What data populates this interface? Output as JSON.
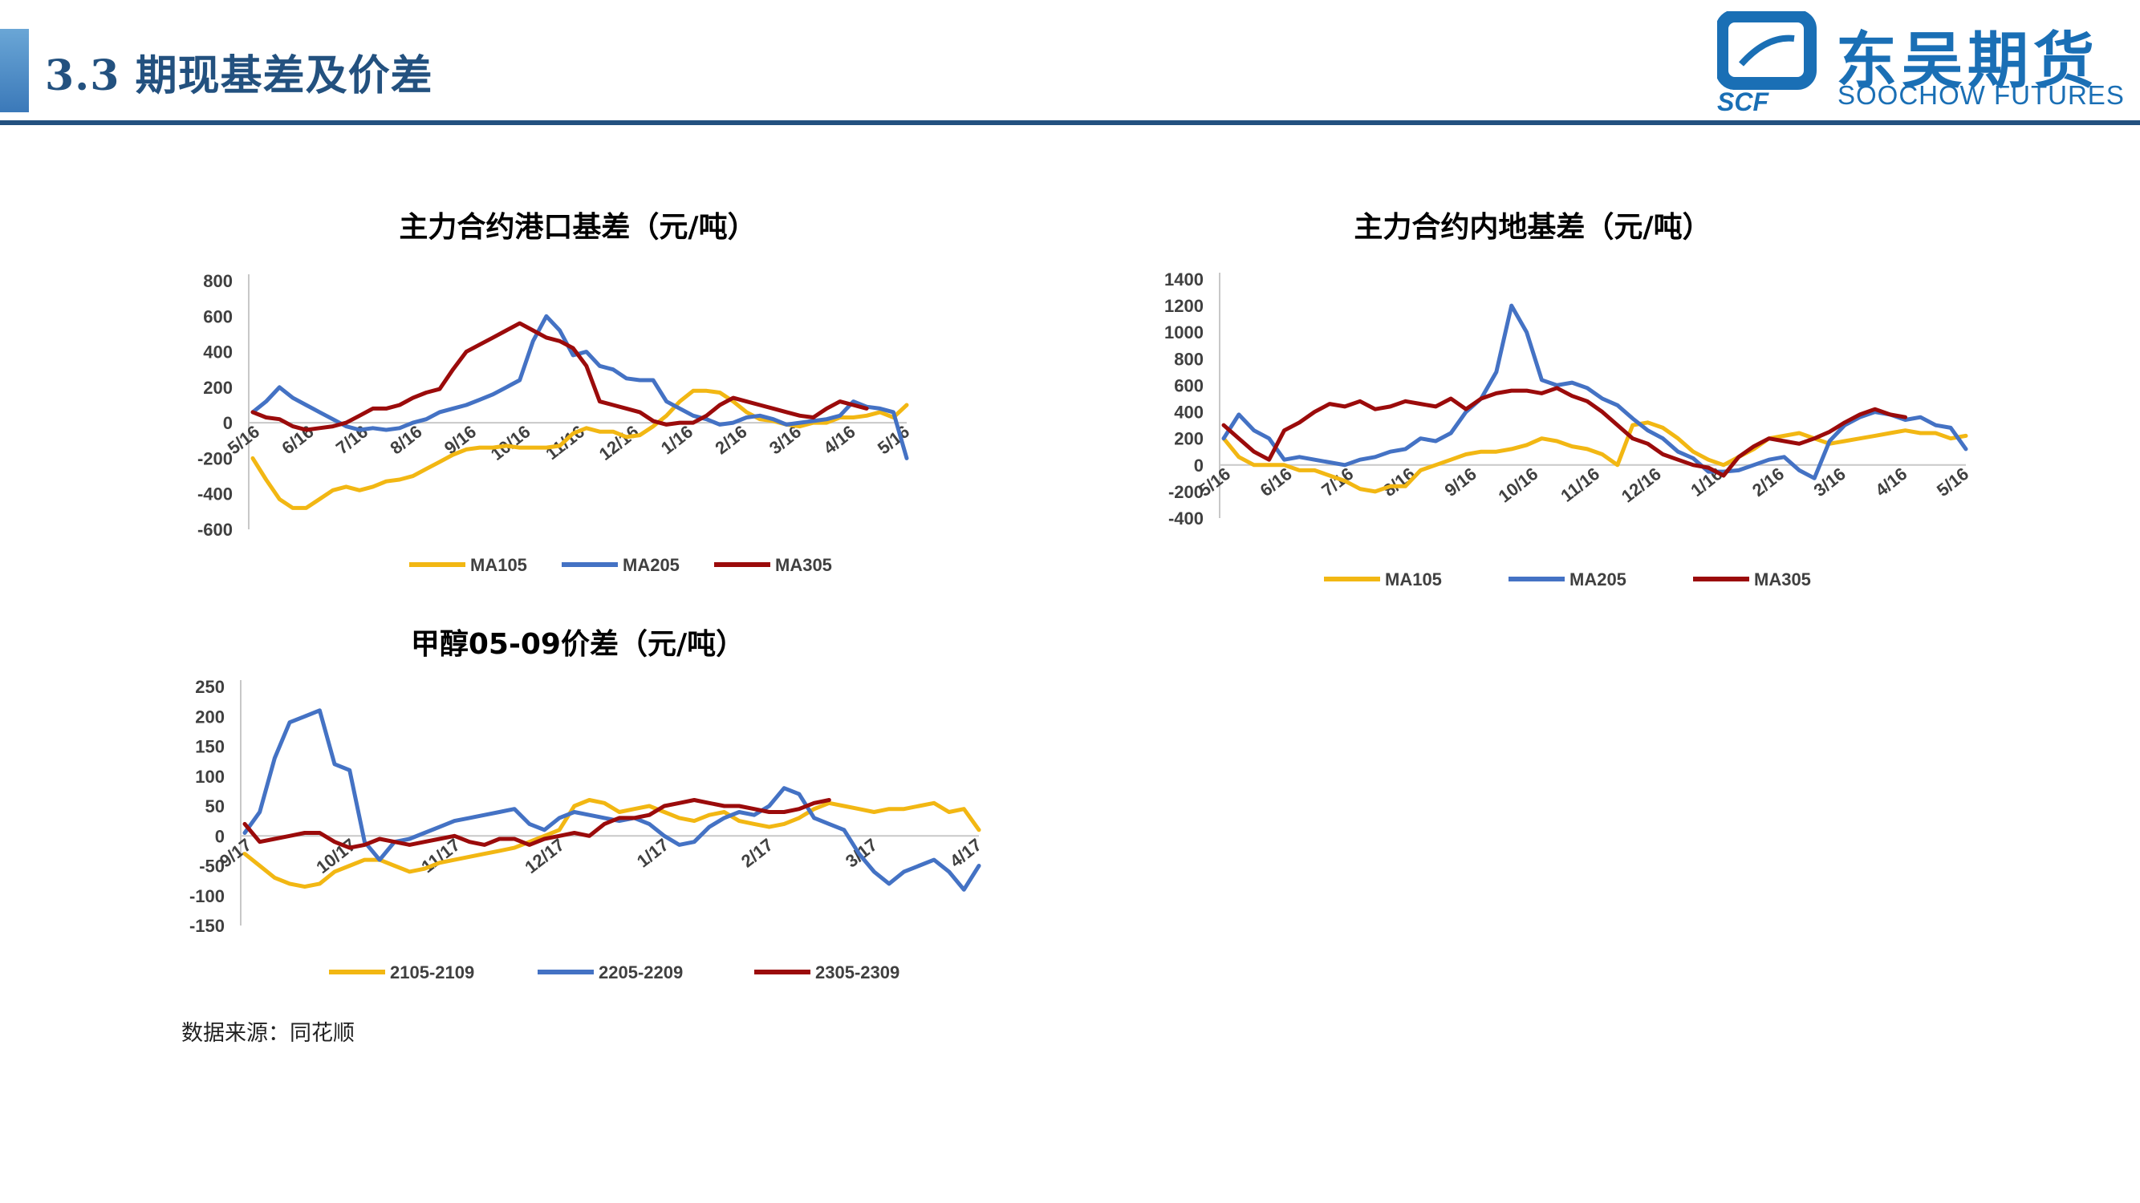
{
  "header": {
    "title": "3.3 期现基差及价差",
    "logo_cn": "东吴期货",
    "logo_en": "SOOCHOW FUTURES",
    "logo_mark": "SCF",
    "accent": "#23517f",
    "logo_color": "#1a6fb5"
  },
  "colors": {
    "yellow": "#f2b713",
    "blue": "#4472c4",
    "red": "#9b0b0b"
  },
  "chart_data": [
    {
      "type": "line",
      "title": "主力合约港口基差（元/吨）",
      "ylim": [
        -600,
        800
      ],
      "yticks": [
        800,
        600,
        400,
        200,
        0,
        -200,
        -400,
        -600
      ],
      "x_labels": [
        "5/16",
        "6/16",
        "7/16",
        "8/16",
        "9/16",
        "10/16",
        "11/16",
        "12/16",
        "1/16",
        "2/16",
        "3/16",
        "4/16",
        "5/16"
      ],
      "series": [
        {
          "name": "MA105",
          "color": "yellow",
          "values": [
            -200,
            -320,
            -430,
            -480,
            -480,
            -430,
            -380,
            -360,
            -380,
            -360,
            -330,
            -320,
            -300,
            -260,
            -220,
            -180,
            -150,
            -140,
            -140,
            -130,
            -140,
            -140,
            -140,
            -130,
            -60,
            -30,
            -50,
            -50,
            -80,
            -70,
            -20,
            40,
            120,
            180,
            180,
            170,
            120,
            60,
            20,
            10,
            -10,
            -20,
            0,
            0,
            30,
            30,
            40,
            60,
            30,
            100
          ]
        },
        {
          "name": "MA205",
          "color": "blue",
          "values": [
            60,
            120,
            200,
            140,
            100,
            60,
            20,
            -20,
            -40,
            -30,
            -40,
            -30,
            0,
            20,
            60,
            80,
            100,
            130,
            160,
            200,
            240,
            460,
            600,
            520,
            380,
            400,
            320,
            300,
            250,
            240,
            240,
            120,
            80,
            40,
            20,
            -10,
            0,
            30,
            40,
            20,
            -10,
            0,
            10,
            20,
            40,
            120,
            90,
            80,
            60,
            -200
          ]
        },
        {
          "name": "MA305",
          "color": "red",
          "values": [
            60,
            30,
            20,
            -20,
            -40,
            -30,
            -20,
            0,
            40,
            80,
            80,
            100,
            140,
            170,
            190,
            300,
            400,
            440,
            480,
            520,
            560,
            520,
            480,
            460,
            420,
            320,
            120,
            100,
            80,
            60,
            10,
            -10,
            0,
            0,
            40,
            100,
            140,
            120,
            100,
            80,
            60,
            40,
            30,
            80,
            120,
            100,
            80,
            null,
            null,
            null
          ]
        }
      ]
    },
    {
      "type": "line",
      "title": "主力合约内地基差（元/吨）",
      "ylim": [
        -400,
        1400
      ],
      "yticks": [
        1400,
        1200,
        1000,
        800,
        600,
        400,
        200,
        0,
        -200,
        -400
      ],
      "x_labels": [
        "5/16",
        "6/16",
        "7/16",
        "8/16",
        "9/16",
        "10/16",
        "11/16",
        "12/16",
        "1/16",
        "2/16",
        "3/16",
        "4/16",
        "5/16"
      ],
      "series": [
        {
          "name": "MA105",
          "color": "yellow",
          "values": [
            200,
            60,
            0,
            0,
            0,
            -40,
            -40,
            -80,
            -120,
            -180,
            -200,
            -160,
            -160,
            -40,
            0,
            40,
            80,
            100,
            100,
            120,
            150,
            200,
            180,
            140,
            120,
            80,
            0,
            300,
            320,
            280,
            200,
            100,
            40,
            0,
            60,
            120,
            200,
            220,
            240,
            200,
            160,
            180,
            200,
            220,
            240,
            260,
            240,
            240,
            200,
            220
          ]
        },
        {
          "name": "MA205",
          "color": "blue",
          "values": [
            200,
            380,
            260,
            200,
            40,
            60,
            40,
            20,
            0,
            40,
            60,
            100,
            120,
            200,
            180,
            240,
            400,
            500,
            700,
            1200,
            1000,
            640,
            600,
            620,
            580,
            500,
            450,
            350,
            260,
            200,
            100,
            50,
            -50,
            -50,
            -40,
            0,
            40,
            60,
            -40,
            -100,
            180,
            300,
            360,
            400,
            380,
            340,
            360,
            300,
            280,
            120
          ]
        },
        {
          "name": "MA305",
          "color": "red",
          "values": [
            300,
            200,
            100,
            40,
            260,
            320,
            400,
            460,
            440,
            480,
            420,
            440,
            480,
            460,
            440,
            500,
            420,
            500,
            540,
            560,
            560,
            540,
            580,
            520,
            480,
            400,
            300,
            200,
            160,
            80,
            40,
            0,
            -20,
            -80,
            60,
            140,
            200,
            180,
            160,
            200,
            250,
            320,
            380,
            420,
            380,
            360,
            null,
            null,
            null,
            null
          ]
        }
      ]
    },
    {
      "type": "line",
      "title": "甲醇05-09价差（元/吨）",
      "ylim": [
        -150,
        250
      ],
      "yticks": [
        250,
        200,
        150,
        100,
        50,
        0,
        -50,
        -100,
        -150
      ],
      "x_labels": [
        "9/17",
        "10/17",
        "11/17",
        "12/17",
        "1/17",
        "2/17",
        "3/17",
        "4/17"
      ],
      "series": [
        {
          "name": "2105-2109",
          "color": "yellow",
          "values": [
            -30,
            -50,
            -70,
            -80,
            -85,
            -80,
            -60,
            -50,
            -40,
            -40,
            -50,
            -60,
            -55,
            -45,
            -40,
            -35,
            -30,
            -25,
            -20,
            -10,
            0,
            10,
            50,
            60,
            55,
            40,
            45,
            50,
            40,
            30,
            25,
            35,
            40,
            25,
            20,
            15,
            20,
            30,
            45,
            55,
            50,
            45,
            40,
            45,
            45,
            50,
            55,
            40,
            45,
            10
          ]
        },
        {
          "name": "2205-2209",
          "color": "blue",
          "values": [
            5,
            40,
            130,
            190,
            200,
            210,
            120,
            110,
            -10,
            -40,
            -10,
            -5,
            5,
            15,
            25,
            30,
            35,
            40,
            45,
            20,
            10,
            30,
            40,
            35,
            30,
            25,
            30,
            20,
            0,
            -15,
            -10,
            15,
            30,
            40,
            35,
            50,
            80,
            70,
            30,
            20,
            10,
            -30,
            -60,
            -80,
            -60,
            -50,
            -40,
            -60,
            -90,
            -50
          ]
        },
        {
          "name": "2305-2309",
          "color": "red",
          "values": [
            20,
            -10,
            -5,
            0,
            5,
            5,
            -10,
            -20,
            -15,
            -5,
            -10,
            -15,
            -10,
            -5,
            0,
            -10,
            -15,
            -5,
            -5,
            -15,
            -5,
            0,
            5,
            0,
            20,
            30,
            30,
            35,
            50,
            55,
            60,
            55,
            50,
            50,
            45,
            40,
            40,
            45,
            55,
            60,
            null,
            null,
            null,
            null,
            null,
            null,
            null,
            null,
            null,
            null
          ]
        }
      ]
    }
  ],
  "source_note": "数据来源：同花顺"
}
